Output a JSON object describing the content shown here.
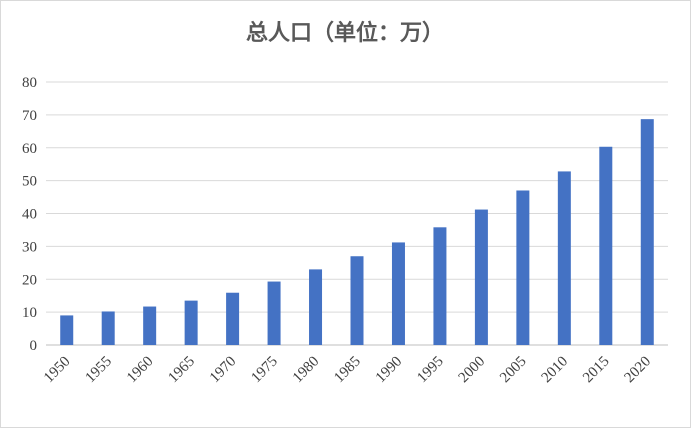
{
  "chart_data": {
    "type": "bar",
    "title": "总人口（单位：万）",
    "xlabel": "",
    "ylabel": "",
    "categories": [
      "1950",
      "1955",
      "1960",
      "1965",
      "1970",
      "1975",
      "1980",
      "1985",
      "1990",
      "1995",
      "2000",
      "2005",
      "2010",
      "2015",
      "2020"
    ],
    "series": [
      {
        "values": [
          9,
          10.2,
          11.7,
          13.5,
          15.9,
          19.3,
          23,
          27,
          31.2,
          35.8,
          41.2,
          47,
          52.8,
          60.3,
          68.7
        ]
      }
    ],
    "ylim": [
      0,
      80
    ],
    "yticks": [
      0,
      10,
      20,
      30,
      40,
      50,
      60,
      70,
      80
    ],
    "grid": true,
    "legend": "none",
    "bar_color": "#4472c4"
  }
}
